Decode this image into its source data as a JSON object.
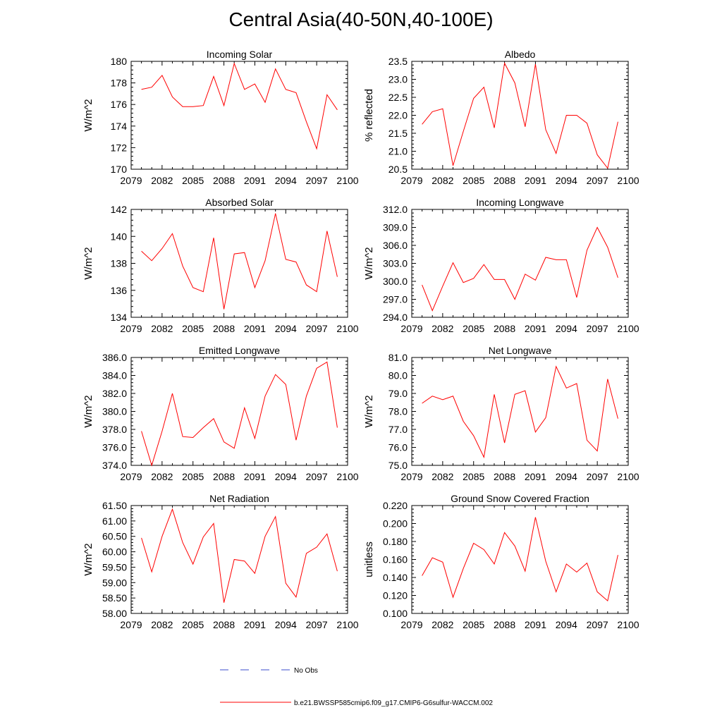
{
  "title": "Central Asia(40-50N,40-100E)",
  "legend": {
    "no_obs_label": "No Obs",
    "model_label": "b.e21.BWSSP585cmip6.f09_g17.CMIP6-G6sulfur-WACCM.002",
    "model_color": "#ff0000",
    "no_obs_color": "#3b4bcc"
  },
  "chart_data": [
    {
      "type": "line",
      "title": "Incoming Solar",
      "ylabel": "W/m^2",
      "xlim": [
        2079,
        2100
      ],
      "ylim": [
        170,
        180
      ],
      "xticks": [
        2079,
        2082,
        2085,
        2088,
        2091,
        2094,
        2097,
        2100
      ],
      "yticks": [
        "170",
        "172",
        "174",
        "176",
        "178",
        "180"
      ],
      "x": [
        2080,
        2081,
        2082,
        2083,
        2084,
        2085,
        2086,
        2087,
        2088,
        2089,
        2090,
        2091,
        2092,
        2093,
        2094,
        2095,
        2096,
        2097,
        2098,
        2099
      ],
      "series": [
        {
          "values": [
            177.4,
            177.6,
            178.7,
            176.7,
            175.8,
            175.8,
            175.9,
            178.6,
            175.9,
            179.8,
            177.4,
            177.9,
            176.2,
            179.3,
            177.4,
            177.1,
            174.4,
            171.9,
            176.9,
            175.5
          ]
        }
      ]
    },
    {
      "type": "line",
      "title": "Albedo",
      "ylabel": "% reflected",
      "xlim": [
        2079,
        2100
      ],
      "ylim": [
        20.5,
        23.5
      ],
      "xticks": [
        2079,
        2082,
        2085,
        2088,
        2091,
        2094,
        2097,
        2100
      ],
      "yticks": [
        "20.5",
        "21.0",
        "21.5",
        "22.0",
        "22.5",
        "23.0",
        "23.5"
      ],
      "x": [
        2080,
        2081,
        2082,
        2083,
        2084,
        2085,
        2086,
        2087,
        2088,
        2089,
        2090,
        2091,
        2092,
        2093,
        2094,
        2095,
        2096,
        2097,
        2098,
        2099
      ],
      "series": [
        {
          "values": [
            21.75,
            22.1,
            22.18,
            20.6,
            21.55,
            22.47,
            22.78,
            21.65,
            23.45,
            22.9,
            21.68,
            23.42,
            21.6,
            20.94,
            22.0,
            22.0,
            21.78,
            20.9,
            20.53,
            21.82
          ]
        }
      ]
    },
    {
      "type": "line",
      "title": "Absorbed Solar",
      "ylabel": "W/m^2",
      "xlim": [
        2079,
        2100
      ],
      "ylim": [
        134,
        142
      ],
      "xticks": [
        2079,
        2082,
        2085,
        2088,
        2091,
        2094,
        2097,
        2100
      ],
      "yticks": [
        "134",
        "136",
        "138",
        "140",
        "142"
      ],
      "x": [
        2080,
        2081,
        2082,
        2083,
        2084,
        2085,
        2086,
        2087,
        2088,
        2089,
        2090,
        2091,
        2092,
        2093,
        2094,
        2095,
        2096,
        2097,
        2098,
        2099
      ],
      "series": [
        {
          "values": [
            138.9,
            138.2,
            139.1,
            140.2,
            137.8,
            136.2,
            135.9,
            139.9,
            134.6,
            138.7,
            138.8,
            136.2,
            138.2,
            141.7,
            138.3,
            138.1,
            136.4,
            135.9,
            140.4,
            137.0
          ]
        }
      ]
    },
    {
      "type": "line",
      "title": "Incoming Longwave",
      "ylabel": "W/m^2",
      "xlim": [
        2079,
        2100
      ],
      "ylim": [
        294.0,
        312.0
      ],
      "xticks": [
        2079,
        2082,
        2085,
        2088,
        2091,
        2094,
        2097,
        2100
      ],
      "yticks": [
        "294.0",
        "297.0",
        "300.0",
        "303.0",
        "306.0",
        "309.0",
        "312.0"
      ],
      "x": [
        2080,
        2081,
        2082,
        2083,
        2084,
        2085,
        2086,
        2087,
        2088,
        2089,
        2090,
        2091,
        2092,
        2093,
        2094,
        2095,
        2096,
        2097,
        2098,
        2099
      ],
      "series": [
        {
          "values": [
            299.4,
            295.1,
            299.2,
            303.1,
            299.8,
            300.5,
            302.8,
            300.3,
            300.3,
            297.0,
            301.2,
            300.2,
            304.0,
            303.6,
            303.6,
            297.3,
            305.2,
            309.0,
            305.7,
            300.6
          ]
        }
      ]
    },
    {
      "type": "line",
      "title": "Emitted Longwave",
      "ylabel": "W/m^2",
      "xlim": [
        2079,
        2100
      ],
      "ylim": [
        374.0,
        386.0
      ],
      "xticks": [
        2079,
        2082,
        2085,
        2088,
        2091,
        2094,
        2097,
        2100
      ],
      "yticks": [
        "374.0",
        "376.0",
        "378.0",
        "380.0",
        "382.0",
        "384.0",
        "386.0"
      ],
      "x": [
        2080,
        2081,
        2082,
        2083,
        2084,
        2085,
        2086,
        2087,
        2088,
        2089,
        2090,
        2091,
        2092,
        2093,
        2094,
        2095,
        2096,
        2097,
        2098,
        2099
      ],
      "series": [
        {
          "values": [
            377.8,
            374.0,
            377.8,
            382.0,
            377.2,
            377.1,
            378.2,
            379.2,
            376.6,
            375.9,
            380.4,
            377.0,
            381.7,
            384.1,
            383.0,
            376.8,
            381.7,
            384.8,
            385.5,
            378.2
          ]
        }
      ]
    },
    {
      "type": "line",
      "title": "Net Longwave",
      "ylabel": "W/m^2",
      "xlim": [
        2079,
        2100
      ],
      "ylim": [
        75.0,
        81.0
      ],
      "xticks": [
        2079,
        2082,
        2085,
        2088,
        2091,
        2094,
        2097,
        2100
      ],
      "yticks": [
        "75.0",
        "76.0",
        "77.0",
        "78.0",
        "79.0",
        "80.0",
        "81.0"
      ],
      "x": [
        2080,
        2081,
        2082,
        2083,
        2084,
        2085,
        2086,
        2087,
        2088,
        2089,
        2090,
        2091,
        2092,
        2093,
        2094,
        2095,
        2096,
        2097,
        2098,
        2099
      ],
      "series": [
        {
          "values": [
            78.45,
            78.85,
            78.65,
            78.85,
            77.45,
            76.65,
            75.45,
            78.95,
            76.25,
            78.95,
            79.15,
            76.85,
            77.65,
            80.5,
            79.3,
            79.55,
            76.4,
            75.8,
            79.8,
            77.6
          ]
        }
      ]
    },
    {
      "type": "line",
      "title": "Net Radiation",
      "ylabel": "W/m^2",
      "xlim": [
        2079,
        2100
      ],
      "ylim": [
        58.0,
        61.5
      ],
      "xticks": [
        2079,
        2082,
        2085,
        2088,
        2091,
        2094,
        2097,
        2100
      ],
      "yticks": [
        "58.00",
        "58.50",
        "59.00",
        "59.50",
        "60.00",
        "60.50",
        "61.00",
        "61.50"
      ],
      "x": [
        2080,
        2081,
        2082,
        2083,
        2084,
        2085,
        2086,
        2087,
        2088,
        2089,
        2090,
        2091,
        2092,
        2093,
        2094,
        2095,
        2096,
        2097,
        2098,
        2099
      ],
      "series": [
        {
          "values": [
            60.45,
            59.35,
            60.5,
            61.38,
            60.3,
            59.6,
            60.48,
            60.92,
            58.35,
            59.75,
            59.7,
            59.3,
            60.5,
            61.14,
            58.98,
            58.53,
            59.95,
            60.15,
            60.58,
            59.37
          ]
        }
      ]
    },
    {
      "type": "line",
      "title": "Ground Snow Covered Fraction",
      "ylabel": "unitless",
      "xlim": [
        2079,
        2100
      ],
      "ylim": [
        0.1,
        0.22
      ],
      "xticks": [
        2079,
        2082,
        2085,
        2088,
        2091,
        2094,
        2097,
        2100
      ],
      "yticks": [
        "0.100",
        "0.120",
        "0.140",
        "0.160",
        "0.180",
        "0.200",
        "0.220"
      ],
      "x": [
        2080,
        2081,
        2082,
        2083,
        2084,
        2085,
        2086,
        2087,
        2088,
        2089,
        2090,
        2091,
        2092,
        2093,
        2094,
        2095,
        2096,
        2097,
        2098,
        2099
      ],
      "series": [
        {
          "values": [
            0.142,
            0.162,
            0.157,
            0.118,
            0.15,
            0.178,
            0.171,
            0.155,
            0.19,
            0.175,
            0.147,
            0.207,
            0.158,
            0.124,
            0.155,
            0.146,
            0.156,
            0.124,
            0.114,
            0.165
          ]
        }
      ]
    }
  ]
}
